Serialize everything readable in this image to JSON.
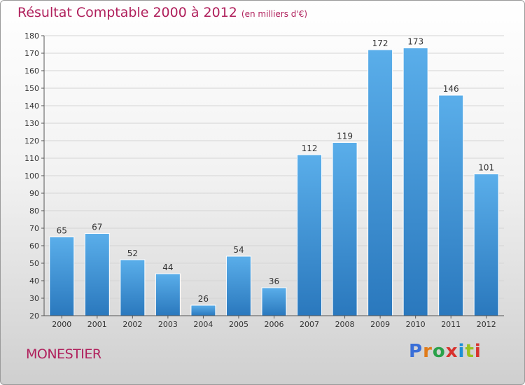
{
  "title": "Résultat Comptable 2000 à 2012",
  "subtitle": "(en milliers d'€)",
  "town": "MONESTIER",
  "logo": {
    "text": "Proxiti",
    "colors": [
      "#3a6fd8",
      "#e07b1a",
      "#2aa14a",
      "#d8322e",
      "#1c8fd6",
      "#9ac21e",
      "#d8322e"
    ]
  },
  "chart_data": {
    "type": "bar",
    "categories": [
      "2000",
      "2001",
      "2002",
      "2003",
      "2004",
      "2005",
      "2006",
      "2007",
      "2008",
      "2009",
      "2010",
      "2011",
      "2012"
    ],
    "values": [
      65,
      67,
      52,
      44,
      26,
      54,
      36,
      112,
      119,
      172,
      173,
      146,
      101
    ],
    "title": "Résultat Comptable 2000 à 2012",
    "ylim": [
      20,
      180
    ],
    "yticks": [
      20,
      30,
      40,
      50,
      60,
      70,
      80,
      90,
      100,
      110,
      120,
      130,
      140,
      150,
      160,
      170,
      180
    ],
    "grid": true,
    "bar_color": "#3f8fd6"
  }
}
